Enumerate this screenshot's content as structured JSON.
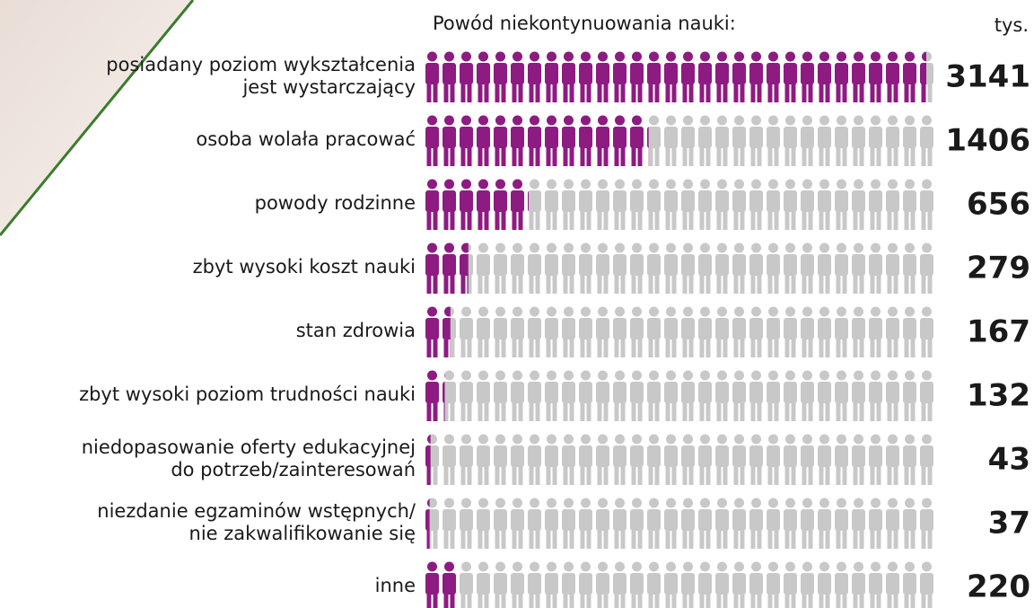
{
  "chart_data": {
    "type": "pictogram",
    "title": "Powód niekontynuowania nauki:",
    "unit": "tys.",
    "categories": [
      [
        "posiadany poziom wykształcenia",
        "jest wystarczający"
      ],
      [
        "osoba wolała pracować"
      ],
      [
        "powody rodzinne"
      ],
      [
        "zbyt wysoki koszt nauki"
      ],
      [
        "stan zdrowia"
      ],
      [
        "zbyt wysoki poziom trudności nauki"
      ],
      [
        "niedopasowanie oferty edukacyjnej",
        "do potrzeb/zainteresowań"
      ],
      [
        "niezdanie egzaminów wstępnych/",
        "nie zakwalifikowanie się"
      ],
      [
        "inne"
      ]
    ],
    "values": [
      3141,
      1406,
      656,
      279,
      167,
      132,
      43,
      37,
      220
    ],
    "color": "#8e1b82",
    "background_color": "#c8c8c8"
  }
}
